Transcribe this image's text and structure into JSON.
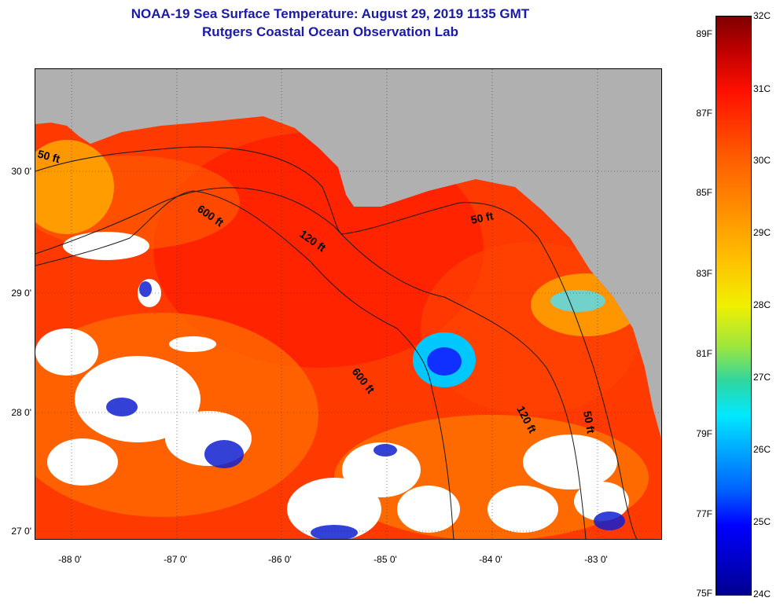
{
  "title": {
    "line1": "NOAA-19 Sea Surface Temperature:  August 29, 2019 1135 GMT",
    "line2": "Rutgers Coastal Ocean Observation Lab"
  },
  "map": {
    "lat_labels": [
      "30 0'",
      "29 0'",
      "28 0'",
      "27 0'"
    ],
    "lon_labels": [
      "-88 0'",
      "-87 0'",
      "-86 0'",
      "-85 0'",
      "-84 0'",
      "-83 0'"
    ],
    "contour_labels": [
      "50 ft",
      "600 ft",
      "120 ft",
      "50 ft",
      "600 ft",
      "120 ft",
      "50 ft"
    ],
    "colors": {
      "land": "#b0b0b0",
      "ocean_warm": "#ff3a00",
      "cloud": "#ffffff"
    }
  },
  "colorbar": {
    "fahrenheit": [
      "89F",
      "87F",
      "85F",
      "83F",
      "81F",
      "79F",
      "77F",
      "75F"
    ],
    "celsius": [
      "32C",
      "31C",
      "30C",
      "29C",
      "28C",
      "27C",
      "26C",
      "25C",
      "24C"
    ]
  }
}
